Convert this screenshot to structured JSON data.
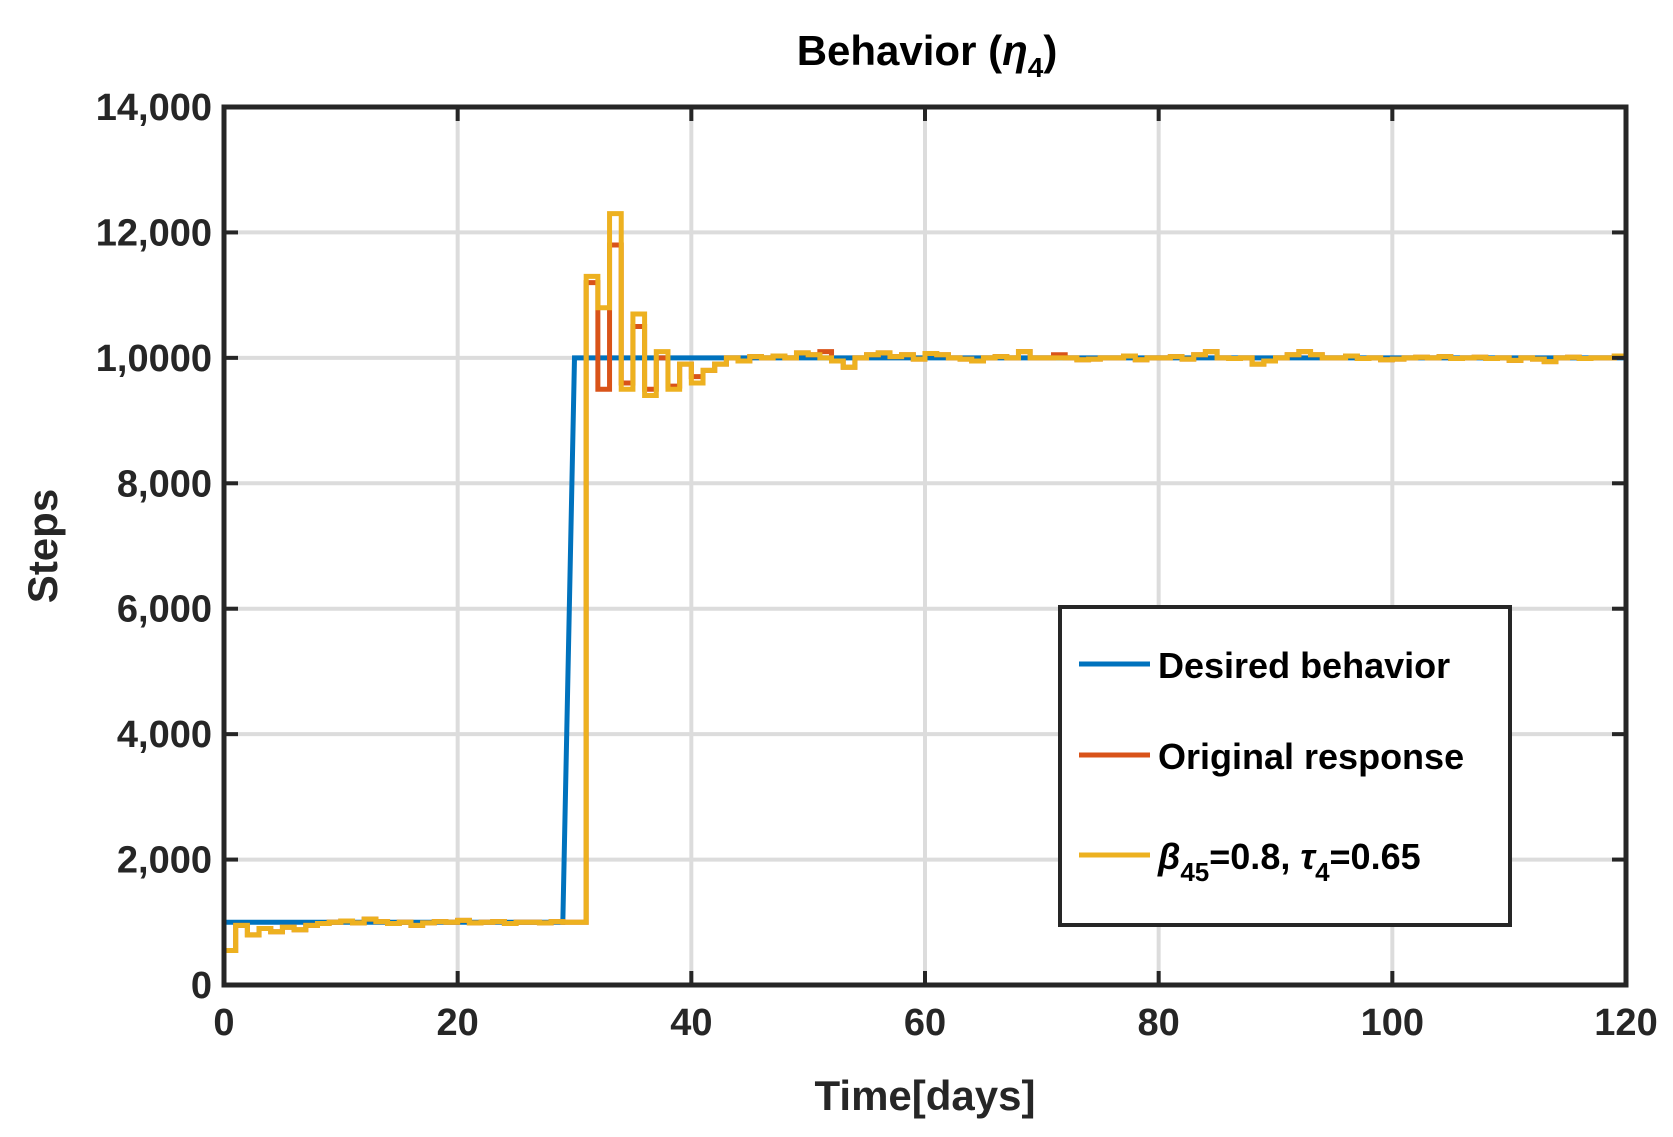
{
  "chart_data": {
    "type": "line",
    "title": "Behavior (",
    "title_symbol": "η",
    "title_subscript": "4",
    "title_close": ")",
    "xlabel": "Time[days]",
    "ylabel": "Steps",
    "xlim": [
      0,
      120
    ],
    "ylim": [
      0,
      14000
    ],
    "xticks": [
      0,
      20,
      40,
      60,
      80,
      100,
      120
    ],
    "xtick_labels": [
      "0",
      "20",
      "40",
      "60",
      "80",
      "100",
      "120"
    ],
    "yticks": [
      0,
      2000,
      4000,
      6000,
      8000,
      10000,
      12000,
      14000
    ],
    "ytick_labels": [
      "0",
      "2,000",
      "4,000",
      "6,000",
      "8,000",
      "1,0000",
      "12,000",
      "14,000"
    ],
    "grid": true,
    "legend_position": "lower-right",
    "legend": {
      "entries": [
        {
          "label": "Desired behavior"
        },
        {
          "label": "Original response"
        },
        {
          "sym1": "β",
          "sub1": "45",
          "mid": "=0.8, ",
          "sym2": "τ",
          "sub2": "4",
          "tail": "=0.65"
        }
      ]
    },
    "series": [
      {
        "name": "Desired behavior",
        "color": "#0072BD",
        "points": [
          [
            0,
            1000
          ],
          [
            29,
            1000
          ],
          [
            30,
            10000
          ],
          [
            120,
            10000
          ]
        ]
      },
      {
        "name": "Original response",
        "color": "#D95319",
        "step": true,
        "points": [
          [
            0,
            550
          ],
          [
            1,
            950
          ],
          [
            2,
            800
          ],
          [
            3,
            900
          ],
          [
            4,
            850
          ],
          [
            5,
            920
          ],
          [
            6,
            880
          ],
          [
            7,
            950
          ],
          [
            8,
            980
          ],
          [
            9,
            1000
          ],
          [
            10,
            1020
          ],
          [
            11,
            990
          ],
          [
            12,
            1050
          ],
          [
            13,
            1010
          ],
          [
            14,
            980
          ],
          [
            15,
            1000
          ],
          [
            16,
            950
          ],
          [
            17,
            990
          ],
          [
            18,
            1010
          ],
          [
            19,
            1000
          ],
          [
            20,
            1030
          ],
          [
            21,
            990
          ],
          [
            22,
            1000
          ],
          [
            23,
            1010
          ],
          [
            24,
            980
          ],
          [
            25,
            1000
          ],
          [
            26,
            1000
          ],
          [
            27,
            990
          ],
          [
            28,
            1010
          ],
          [
            29,
            1000
          ],
          [
            30,
            1000
          ],
          [
            31,
            11200
          ],
          [
            32,
            9500
          ],
          [
            33,
            11800
          ],
          [
            34,
            9600
          ],
          [
            35,
            10500
          ],
          [
            36,
            9500
          ],
          [
            37,
            10000
          ],
          [
            38,
            9550
          ],
          [
            39,
            9900
          ],
          [
            40,
            9700
          ],
          [
            41,
            9800
          ],
          [
            42,
            9900
          ],
          [
            43,
            10000
          ],
          [
            44,
            9950
          ],
          [
            45,
            10020
          ],
          [
            46,
            10000
          ],
          [
            47,
            10030
          ],
          [
            48,
            10000
          ],
          [
            49,
            10080
          ],
          [
            50,
            10050
          ],
          [
            51,
            10100
          ],
          [
            52,
            9950
          ],
          [
            53,
            9850
          ],
          [
            54,
            10000
          ],
          [
            55,
            10050
          ],
          [
            56,
            10080
          ],
          [
            57,
            10020
          ],
          [
            58,
            10050
          ],
          [
            59,
            9980
          ],
          [
            60,
            10070
          ],
          [
            61,
            10050
          ],
          [
            62,
            10000
          ],
          [
            63,
            9980
          ],
          [
            64,
            9950
          ],
          [
            65,
            10000
          ],
          [
            66,
            10020
          ],
          [
            67,
            10000
          ],
          [
            68,
            10100
          ],
          [
            69,
            10000
          ],
          [
            70,
            10000
          ],
          [
            71,
            10050
          ],
          [
            72,
            10000
          ],
          [
            73,
            9970
          ],
          [
            74,
            9980
          ],
          [
            75,
            10000
          ],
          [
            76,
            10000
          ],
          [
            77,
            10030
          ],
          [
            78,
            9970
          ],
          [
            79,
            10000
          ],
          [
            80,
            10000
          ],
          [
            81,
            10020
          ],
          [
            82,
            9980
          ],
          [
            83,
            10050
          ],
          [
            84,
            10100
          ],
          [
            85,
            10000
          ],
          [
            86,
            9990
          ],
          [
            87,
            10000
          ],
          [
            88,
            9900
          ],
          [
            89,
            9950
          ],
          [
            90,
            10000
          ],
          [
            91,
            10050
          ],
          [
            92,
            10100
          ],
          [
            93,
            10050
          ],
          [
            94,
            10000
          ],
          [
            95,
            10000
          ],
          [
            96,
            10030
          ],
          [
            97,
            9990
          ],
          [
            98,
            10000
          ],
          [
            99,
            9970
          ],
          [
            100,
            9980
          ],
          [
            101,
            10000
          ],
          [
            102,
            10010
          ],
          [
            103,
            10000
          ],
          [
            104,
            10020
          ],
          [
            105,
            9990
          ],
          [
            106,
            10000
          ],
          [
            107,
            10010
          ],
          [
            108,
            9990
          ],
          [
            109,
            10000
          ],
          [
            110,
            9960
          ],
          [
            111,
            10000
          ],
          [
            112,
            9980
          ],
          [
            113,
            9940
          ],
          [
            114,
            10000
          ],
          [
            115,
            10010
          ],
          [
            116,
            9990
          ],
          [
            117,
            10000
          ],
          [
            118,
            10000
          ],
          [
            119,
            10030
          ],
          [
            120,
            10030
          ]
        ]
      },
      {
        "name": "β45=0.8, τ4=0.65",
        "color": "#EDB120",
        "step": true,
        "points": [
          [
            0,
            550
          ],
          [
            1,
            950
          ],
          [
            2,
            800
          ],
          [
            3,
            900
          ],
          [
            4,
            850
          ],
          [
            5,
            920
          ],
          [
            6,
            880
          ],
          [
            7,
            950
          ],
          [
            8,
            980
          ],
          [
            9,
            1000
          ],
          [
            10,
            1020
          ],
          [
            11,
            990
          ],
          [
            12,
            1050
          ],
          [
            13,
            1010
          ],
          [
            14,
            980
          ],
          [
            15,
            1000
          ],
          [
            16,
            950
          ],
          [
            17,
            990
          ],
          [
            18,
            1010
          ],
          [
            19,
            1000
          ],
          [
            20,
            1030
          ],
          [
            21,
            990
          ],
          [
            22,
            1000
          ],
          [
            23,
            1010
          ],
          [
            24,
            980
          ],
          [
            25,
            1000
          ],
          [
            26,
            1000
          ],
          [
            27,
            990
          ],
          [
            28,
            1010
          ],
          [
            29,
            1000
          ],
          [
            30,
            1000
          ],
          [
            31,
            11300
          ],
          [
            32,
            10800
          ],
          [
            33,
            12300
          ],
          [
            34,
            9500
          ],
          [
            35,
            10700
          ],
          [
            36,
            9400
          ],
          [
            37,
            10100
          ],
          [
            38,
            9500
          ],
          [
            39,
            9900
          ],
          [
            40,
            9600
          ],
          [
            41,
            9800
          ],
          [
            42,
            9900
          ],
          [
            43,
            10000
          ],
          [
            44,
            9950
          ],
          [
            45,
            10020
          ],
          [
            46,
            10000
          ],
          [
            47,
            10030
          ],
          [
            48,
            10000
          ],
          [
            49,
            10080
          ],
          [
            50,
            10050
          ],
          [
            51,
            10000
          ],
          [
            52,
            9950
          ],
          [
            53,
            9850
          ],
          [
            54,
            10000
          ],
          [
            55,
            10050
          ],
          [
            56,
            10080
          ],
          [
            57,
            10020
          ],
          [
            58,
            10050
          ],
          [
            59,
            9980
          ],
          [
            60,
            10070
          ],
          [
            61,
            10050
          ],
          [
            62,
            10000
          ],
          [
            63,
            9980
          ],
          [
            64,
            9950
          ],
          [
            65,
            10000
          ],
          [
            66,
            10020
          ],
          [
            67,
            10000
          ],
          [
            68,
            10100
          ],
          [
            69,
            10000
          ],
          [
            70,
            10000
          ],
          [
            71,
            10000
          ],
          [
            72,
            10000
          ],
          [
            73,
            9970
          ],
          [
            74,
            9980
          ],
          [
            75,
            10000
          ],
          [
            76,
            10000
          ],
          [
            77,
            10030
          ],
          [
            78,
            9970
          ],
          [
            79,
            10000
          ],
          [
            80,
            10000
          ],
          [
            81,
            10020
          ],
          [
            82,
            9980
          ],
          [
            83,
            10050
          ],
          [
            84,
            10100
          ],
          [
            85,
            10000
          ],
          [
            86,
            9990
          ],
          [
            87,
            10000
          ],
          [
            88,
            9900
          ],
          [
            89,
            9950
          ],
          [
            90,
            10000
          ],
          [
            91,
            10050
          ],
          [
            92,
            10100
          ],
          [
            93,
            10050
          ],
          [
            94,
            10000
          ],
          [
            95,
            10000
          ],
          [
            96,
            10030
          ],
          [
            97,
            9990
          ],
          [
            98,
            10000
          ],
          [
            99,
            9970
          ],
          [
            100,
            9980
          ],
          [
            101,
            10000
          ],
          [
            102,
            10010
          ],
          [
            103,
            10000
          ],
          [
            104,
            10020
          ],
          [
            105,
            9990
          ],
          [
            106,
            10000
          ],
          [
            107,
            10010
          ],
          [
            108,
            9990
          ],
          [
            109,
            10000
          ],
          [
            110,
            9960
          ],
          [
            111,
            10000
          ],
          [
            112,
            9980
          ],
          [
            113,
            9940
          ],
          [
            114,
            10000
          ],
          [
            115,
            10010
          ],
          [
            116,
            9990
          ],
          [
            117,
            10000
          ],
          [
            118,
            10000
          ],
          [
            119,
            10030
          ],
          [
            120,
            10030
          ]
        ]
      }
    ]
  }
}
